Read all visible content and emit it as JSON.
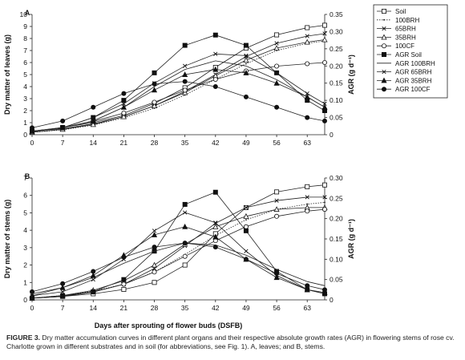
{
  "figure": {
    "caption_label": "FIGURE 3.",
    "caption_text": "Dry matter accumulation curves in different plant organs and their respective absolute growth rates (AGR) in flowering stems of rose cv. Charlotte grown in different substrates and in soil (for abbreviations, see Fig. 1). A, leaves; and B, stems.",
    "shared_xlabel": "Days after sprouting of flower buds (DSFB)"
  },
  "chart_data": [
    {
      "panel": "A",
      "type": "line",
      "xlabel": "",
      "ylabel": "Dry matter of leaves (g)",
      "y2label": "AGR (g d⁻¹)",
      "xlim": [
        0,
        67
      ],
      "xticks": [
        0,
        7,
        14,
        21,
        28,
        35,
        42,
        49,
        56,
        63
      ],
      "ylim": [
        0,
        10
      ],
      "yticks": [
        0,
        1,
        2,
        3,
        4,
        5,
        6,
        7,
        8,
        9,
        10
      ],
      "y2lim": [
        0,
        0.35
      ],
      "y2ticks": [
        "0",
        "0.05",
        "0.10",
        "0.15",
        "0.20",
        "0.25",
        "0.30",
        "0.35"
      ],
      "legend_position": "top-right",
      "legend": [
        "Soil",
        "100BRH",
        "65BRH",
        "35BRH",
        "100CF",
        "AGR Soil",
        "AGR 100BRH",
        "AGR 65BRH",
        "AGR 35BRH",
        "AGR 100CF"
      ],
      "series": [
        {
          "name": "Soil",
          "axis": "left",
          "marker": "open-square",
          "x": [
            0,
            7,
            14,
            21,
            28,
            35,
            42,
            49,
            56,
            63,
            67
          ],
          "y": [
            0.25,
            0.6,
            1.0,
            1.6,
            2.6,
            3.9,
            5.6,
            7.2,
            8.3,
            8.9,
            9.1
          ]
        },
        {
          "name": "100BRH",
          "axis": "left",
          "marker": "dot",
          "x": [
            0,
            7,
            14,
            21,
            28,
            35,
            42,
            49,
            56,
            63,
            67
          ],
          "y": [
            0.2,
            0.4,
            0.8,
            1.4,
            2.2,
            3.3,
            4.6,
            5.9,
            7.0,
            7.6,
            7.8
          ]
        },
        {
          "name": "65BRH",
          "axis": "left",
          "marker": "x",
          "x": [
            0,
            7,
            14,
            21,
            28,
            35,
            42,
            49,
            56,
            63,
            67
          ],
          "y": [
            0.3,
            0.5,
            0.9,
            1.5,
            2.4,
            3.6,
            5.0,
            6.5,
            7.6,
            8.2,
            8.4
          ]
        },
        {
          "name": "35BRH",
          "axis": "left",
          "marker": "open-triangle",
          "x": [
            0,
            7,
            14,
            21,
            28,
            35,
            42,
            49,
            56,
            63,
            67
          ],
          "y": [
            0.2,
            0.45,
            0.85,
            1.5,
            2.4,
            3.5,
            4.9,
            6.2,
            7.2,
            7.7,
            7.9
          ]
        },
        {
          "name": "100CF",
          "axis": "left",
          "marker": "open-circle",
          "x": [
            0,
            7,
            14,
            21,
            28,
            35,
            42,
            49,
            56,
            63,
            67
          ],
          "y": [
            0.3,
            0.6,
            1.1,
            1.8,
            2.7,
            3.7,
            4.6,
            5.3,
            5.7,
            5.9,
            6.0
          ]
        },
        {
          "name": "AGR Soil",
          "axis": "right",
          "marker": "filled-square",
          "x": [
            0,
            7,
            14,
            21,
            28,
            35,
            42,
            49,
            56,
            63,
            67
          ],
          "y": [
            0.01,
            0.02,
            0.05,
            0.1,
            0.18,
            0.26,
            0.29,
            0.26,
            0.18,
            0.1,
            0.07
          ]
        },
        {
          "name": "AGR 100BRH",
          "axis": "right",
          "marker": "none",
          "x": [
            0,
            7,
            14,
            21,
            28,
            35,
            42,
            49,
            56,
            63,
            67
          ],
          "y": [
            0.01,
            0.02,
            0.04,
            0.08,
            0.14,
            0.19,
            0.215,
            0.2,
            0.16,
            0.11,
            0.08
          ]
        },
        {
          "name": "AGR 65BRH",
          "axis": "right",
          "marker": "x",
          "x": [
            0,
            7,
            14,
            21,
            28,
            35,
            42,
            49,
            56,
            63,
            67
          ],
          "y": [
            0.01,
            0.02,
            0.05,
            0.09,
            0.15,
            0.2,
            0.235,
            0.23,
            0.18,
            0.12,
            0.09
          ]
        },
        {
          "name": "AGR 35BRH",
          "axis": "right",
          "marker": "filled-triangle",
          "x": [
            0,
            7,
            14,
            21,
            28,
            35,
            42,
            49,
            56,
            63,
            67
          ],
          "y": [
            0.01,
            0.02,
            0.04,
            0.08,
            0.13,
            0.175,
            0.19,
            0.18,
            0.15,
            0.11,
            0.08
          ]
        },
        {
          "name": "AGR 100CF",
          "axis": "right",
          "marker": "filled-circle",
          "x": [
            0,
            7,
            14,
            21,
            28,
            35,
            42,
            49,
            56,
            63,
            67
          ],
          "y": [
            0.02,
            0.04,
            0.08,
            0.12,
            0.148,
            0.155,
            0.14,
            0.11,
            0.08,
            0.05,
            0.04
          ]
        }
      ]
    },
    {
      "panel": "B",
      "type": "line",
      "xlabel": "Days after sprouting of flower buds (DSFB)",
      "ylabel": "Dry matter of stems (g)",
      "y2label": "AGR (g d⁻¹)",
      "xlim": [
        0,
        67
      ],
      "xticks": [
        0,
        7,
        14,
        21,
        28,
        35,
        42,
        49,
        56,
        63
      ],
      "ylim": [
        0,
        7
      ],
      "yticks": [
        0,
        1,
        2,
        3,
        4,
        5,
        6,
        7
      ],
      "y2lim": [
        0,
        0.3
      ],
      "y2ticks": [
        "0",
        "0.05",
        "0.10",
        "0.15",
        "0.20",
        "0.25",
        "0.30"
      ],
      "series": [
        {
          "name": "Soil",
          "axis": "left",
          "marker": "open-square",
          "x": [
            0,
            7,
            14,
            21,
            28,
            35,
            42,
            49,
            56,
            63,
            67
          ],
          "y": [
            0.1,
            0.2,
            0.35,
            0.6,
            1.0,
            2.0,
            3.8,
            5.3,
            6.2,
            6.5,
            6.6
          ]
        },
        {
          "name": "100BRH",
          "axis": "left",
          "marker": "dot",
          "x": [
            0,
            7,
            14,
            21,
            28,
            35,
            42,
            49,
            56,
            63,
            67
          ],
          "y": [
            0.1,
            0.25,
            0.5,
            0.9,
            1.6,
            2.6,
            3.7,
            4.6,
            5.2,
            5.5,
            5.6
          ]
        },
        {
          "name": "65BRH",
          "axis": "left",
          "marker": "x",
          "x": [
            0,
            7,
            14,
            21,
            28,
            35,
            42,
            49,
            56,
            63,
            67
          ],
          "y": [
            0.1,
            0.2,
            0.45,
            0.9,
            1.8,
            3.1,
            4.4,
            5.3,
            5.7,
            5.9,
            5.9
          ]
        },
        {
          "name": "35BRH",
          "axis": "left",
          "marker": "open-triangle",
          "x": [
            0,
            7,
            14,
            21,
            28,
            35,
            42,
            49,
            56,
            63,
            67
          ],
          "y": [
            0.1,
            0.25,
            0.55,
            1.1,
            2.0,
            3.2,
            4.2,
            4.8,
            5.2,
            5.3,
            5.3
          ]
        },
        {
          "name": "100CF",
          "axis": "left",
          "marker": "open-circle",
          "x": [
            0,
            7,
            14,
            21,
            28,
            35,
            42,
            49,
            56,
            63,
            67
          ],
          "y": [
            0.1,
            0.2,
            0.45,
            0.9,
            1.6,
            2.5,
            3.4,
            4.2,
            4.8,
            5.1,
            5.2
          ]
        },
        {
          "name": "AGR Soil",
          "axis": "right",
          "marker": "filled-square",
          "x": [
            0,
            7,
            14,
            21,
            28,
            35,
            42,
            49,
            56,
            63,
            67
          ],
          "y": [
            0.004,
            0.01,
            0.02,
            0.05,
            0.12,
            0.235,
            0.265,
            0.17,
            0.07,
            0.025,
            0.015
          ]
        },
        {
          "name": "AGR 100BRH",
          "axis": "right",
          "marker": "none",
          "x": [
            0,
            7,
            14,
            21,
            28,
            35,
            42,
            49,
            56,
            63,
            67
          ],
          "y": [
            0.015,
            0.03,
            0.055,
            0.09,
            0.12,
            0.14,
            0.135,
            0.11,
            0.075,
            0.045,
            0.035
          ]
        },
        {
          "name": "AGR 65BRH",
          "axis": "right",
          "marker": "x",
          "x": [
            0,
            7,
            14,
            21,
            28,
            35,
            42,
            49,
            56,
            63,
            67
          ],
          "y": [
            0.01,
            0.02,
            0.05,
            0.1,
            0.17,
            0.215,
            0.19,
            0.12,
            0.06,
            0.025,
            0.015
          ]
        },
        {
          "name": "AGR 35BRH",
          "axis": "right",
          "marker": "filled-triangle",
          "x": [
            0,
            7,
            14,
            21,
            28,
            35,
            42,
            49,
            56,
            63,
            67
          ],
          "y": [
            0.01,
            0.03,
            0.06,
            0.11,
            0.16,
            0.18,
            0.155,
            0.1,
            0.055,
            0.025,
            0.018
          ]
        },
        {
          "name": "AGR 100CF",
          "axis": "right",
          "marker": "filled-circle",
          "x": [
            0,
            7,
            14,
            21,
            28,
            35,
            42,
            49,
            56,
            63,
            67
          ],
          "y": [
            0.02,
            0.04,
            0.07,
            0.105,
            0.13,
            0.14,
            0.13,
            0.1,
            0.065,
            0.035,
            0.025
          ]
        }
      ]
    }
  ]
}
